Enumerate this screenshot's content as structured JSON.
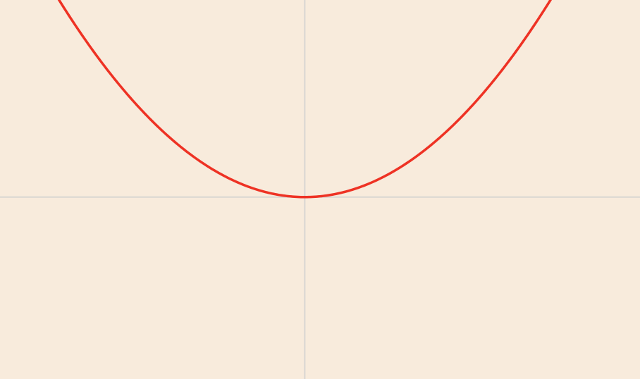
{
  "colors": {
    "background": "#f8ebdc",
    "axis": "#d9d6d2",
    "curve": "#ee3224"
  },
  "chart_data": {
    "type": "line",
    "xlim": [
      -1.0,
      1.1
    ],
    "ylim": [
      -0.6,
      0.65
    ],
    "grid": false,
    "legend": "none",
    "axes_visible": true,
    "tick_labels_visible": false,
    "series": [
      {
        "function": "y = x^2",
        "x": [
          -0.8,
          -0.7,
          -0.6,
          -0.5,
          -0.4,
          -0.3,
          -0.2,
          -0.1,
          0.0,
          0.1,
          0.2,
          0.3,
          0.4,
          0.5,
          0.6,
          0.7,
          0.8
        ],
        "y": [
          0.64,
          0.49,
          0.36,
          0.25,
          0.16,
          0.09,
          0.04,
          0.01,
          0.0,
          0.01,
          0.04,
          0.09,
          0.16,
          0.25,
          0.36,
          0.49,
          0.64
        ]
      }
    ]
  }
}
